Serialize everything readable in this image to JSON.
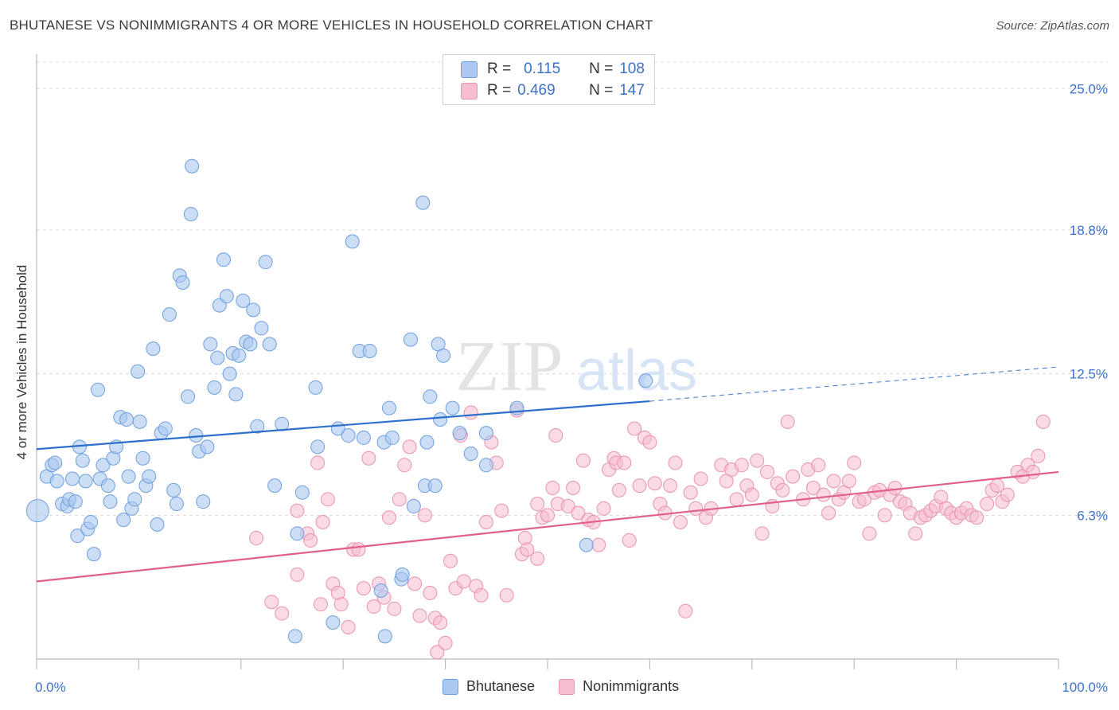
{
  "header": {
    "title": "BHUTANESE VS NONIMMIGRANTS 4 OR MORE VEHICLES IN HOUSEHOLD CORRELATION CHART",
    "source": "Source: ZipAtlas.com"
  },
  "watermark": {
    "zip": "ZIP",
    "atlas": "atlas"
  },
  "stats": [
    {
      "r_label": "R =",
      "r_value": "0.115",
      "n_label": "N =",
      "n_value": "108"
    },
    {
      "r_label": "R =",
      "r_value": "0.469",
      "n_label": "N =",
      "n_value": "147"
    }
  ],
  "legend": [
    "Bhutanese",
    "Nonimmigrants"
  ],
  "colors": {
    "blue_fill": "#aac8f0",
    "blue_stroke": "#6e9fde",
    "blue_line": "#2f6fcc",
    "pink_fill": "#f6bcd0",
    "pink_stroke": "#e993b0",
    "pink_line": "#e0608a",
    "tick_label": "#3c72c8",
    "grid": "#d9d9d9"
  },
  "chart_data": {
    "type": "scatter",
    "title": "BHUTANESE VS NONIMMIGRANTS 4 OR MORE VEHICLES IN HOUSEHOLD CORRELATION CHART",
    "xlabel": "",
    "ylabel": "4 or more Vehicles in Household",
    "xlim": [
      0,
      100
    ],
    "ylim": [
      0,
      26.3
    ],
    "x_tick_labels": [
      "0.0%",
      "100.0%"
    ],
    "y_ticks": [
      6.3,
      12.5,
      18.8,
      25.0
    ],
    "y_tick_labels": [
      "6.3%",
      "12.5%",
      "18.8%",
      "25.0%"
    ],
    "grid": true,
    "legend_position": "bottom-center",
    "series": [
      {
        "name": "Bhutanese",
        "color": "#6e9fde",
        "trend": {
          "x": [
            0,
            60
          ],
          "y": [
            9.2,
            11.3
          ],
          "dashed_to": [
            100,
            12.8
          ]
        },
        "points": [
          [
            0.1,
            6.5
          ],
          [
            1,
            8
          ],
          [
            2,
            7.8
          ],
          [
            1.5,
            8.5
          ],
          [
            1.8,
            8.6
          ],
          [
            2.5,
            6.8
          ],
          [
            3,
            6.7
          ],
          [
            3.2,
            7
          ],
          [
            3.5,
            7.9
          ],
          [
            3.8,
            6.9
          ],
          [
            4,
            5.4
          ],
          [
            4.2,
            9.3
          ],
          [
            4.5,
            8.7
          ],
          [
            4.8,
            7.8
          ],
          [
            5,
            5.7
          ],
          [
            5.3,
            6
          ],
          [
            5.6,
            4.6
          ],
          [
            6,
            11.8
          ],
          [
            6.2,
            7.9
          ],
          [
            6.5,
            8.5
          ],
          [
            7,
            7.6
          ],
          [
            7.2,
            6.9
          ],
          [
            7.5,
            8.8
          ],
          [
            7.8,
            9.3
          ],
          [
            8.2,
            10.6
          ],
          [
            8.5,
            6.1
          ],
          [
            8.8,
            10.5
          ],
          [
            9,
            8
          ],
          [
            9.3,
            6.6
          ],
          [
            9.6,
            7
          ],
          [
            9.9,
            12.6
          ],
          [
            10.1,
            10.4
          ],
          [
            10.4,
            8.8
          ],
          [
            10.7,
            7.6
          ],
          [
            11,
            8
          ],
          [
            11.4,
            13.6
          ],
          [
            11.8,
            5.9
          ],
          [
            12.2,
            9.9
          ],
          [
            12.6,
            10.1
          ],
          [
            13,
            15.1
          ],
          [
            13.4,
            7.4
          ],
          [
            13.7,
            6.8
          ],
          [
            14,
            16.8
          ],
          [
            14.3,
            16.5
          ],
          [
            14.8,
            11.5
          ],
          [
            15.2,
            21.6
          ],
          [
            15.1,
            19.5
          ],
          [
            15.6,
            9.8
          ],
          [
            15.9,
            9.1
          ],
          [
            16.3,
            6.9
          ],
          [
            16.7,
            9.3
          ],
          [
            17,
            13.8
          ],
          [
            17.4,
            11.9
          ],
          [
            17.7,
            13.2
          ],
          [
            17.9,
            15.5
          ],
          [
            18.3,
            17.5
          ],
          [
            18.6,
            15.9
          ],
          [
            18.9,
            12.5
          ],
          [
            19.2,
            13.4
          ],
          [
            19.5,
            11.6
          ],
          [
            19.8,
            13.3
          ],
          [
            20.2,
            15.7
          ],
          [
            20.5,
            13.9
          ],
          [
            20.9,
            13.8
          ],
          [
            21.2,
            15.3
          ],
          [
            21.6,
            10.2
          ],
          [
            22,
            14.5
          ],
          [
            22.4,
            17.4
          ],
          [
            22.8,
            13.8
          ],
          [
            23.3,
            7.6
          ],
          [
            24,
            10.3
          ],
          [
            25.5,
            5.5
          ],
          [
            25.3,
            1
          ],
          [
            26,
            7.3
          ],
          [
            27.3,
            11.9
          ],
          [
            27.5,
            9.3
          ],
          [
            29,
            1.6
          ],
          [
            29.5,
            10.1
          ],
          [
            30.5,
            9.8
          ],
          [
            30.9,
            18.3
          ],
          [
            31.6,
            13.5
          ],
          [
            32,
            9.7
          ],
          [
            32.6,
            13.5
          ],
          [
            33.7,
            3.0
          ],
          [
            34,
            9.5
          ],
          [
            34.1,
            1.0
          ],
          [
            34.5,
            11
          ],
          [
            34.8,
            9.7
          ],
          [
            35.7,
            3.5
          ],
          [
            35.8,
            3.7
          ],
          [
            36.6,
            14
          ],
          [
            36.9,
            6.7
          ],
          [
            37.8,
            20
          ],
          [
            38.2,
            9.5
          ],
          [
            38,
            7.6
          ],
          [
            38.5,
            11.5
          ],
          [
            39,
            7.6
          ],
          [
            39.3,
            13.8
          ],
          [
            39.5,
            10.5
          ],
          [
            39.8,
            13.3
          ],
          [
            40.7,
            11
          ],
          [
            41.4,
            9.9
          ],
          [
            42.5,
            9
          ],
          [
            44,
            8.5
          ],
          [
            44,
            9.9
          ],
          [
            47,
            11
          ],
          [
            53.8,
            5
          ],
          [
            59.6,
            12.2
          ]
        ]
      },
      {
        "name": "Nonimmigrants",
        "color": "#e993b0",
        "trend": {
          "x": [
            0,
            100
          ],
          "y": [
            3.4,
            8.2
          ]
        },
        "points": [
          [
            21.5,
            5.3
          ],
          [
            23,
            2.5
          ],
          [
            24,
            2
          ],
          [
            25.5,
            6.5
          ],
          [
            25.5,
            3.7
          ],
          [
            26.5,
            5.5
          ],
          [
            26.8,
            5.2
          ],
          [
            27.5,
            8.6
          ],
          [
            27.8,
            2.4
          ],
          [
            28,
            6
          ],
          [
            28.5,
            7
          ],
          [
            29,
            3.3
          ],
          [
            29.5,
            2.9
          ],
          [
            29.8,
            2.4
          ],
          [
            30.5,
            1.4
          ],
          [
            31,
            4.8
          ],
          [
            31.5,
            4.8
          ],
          [
            32,
            3.1
          ],
          [
            32.5,
            8.8
          ],
          [
            33,
            2.3
          ],
          [
            33.5,
            3.3
          ],
          [
            34,
            2.7
          ],
          [
            34.5,
            6.2
          ],
          [
            35,
            2.2
          ],
          [
            35.5,
            7
          ],
          [
            36,
            8.5
          ],
          [
            36.5,
            9.3
          ],
          [
            37,
            3.3
          ],
          [
            37.5,
            1.9
          ],
          [
            38,
            6.3
          ],
          [
            38.5,
            2.9
          ],
          [
            39,
            1.8
          ],
          [
            39.2,
            0.3
          ],
          [
            39.5,
            1.6
          ],
          [
            40,
            0.7
          ],
          [
            40.5,
            4.3
          ],
          [
            41,
            3.1
          ],
          [
            41.5,
            9.8
          ],
          [
            41.8,
            3.4
          ],
          [
            42.5,
            10.8
          ],
          [
            43,
            3.2
          ],
          [
            43.5,
            2.8
          ],
          [
            44,
            6
          ],
          [
            44.5,
            9.5
          ],
          [
            45,
            8.6
          ],
          [
            45.5,
            6.5
          ],
          [
            46,
            2.8
          ],
          [
            47,
            10.9
          ],
          [
            47.5,
            4.6
          ],
          [
            47.8,
            5.3
          ],
          [
            48,
            4.8
          ],
          [
            49,
            4.4
          ],
          [
            49,
            6.8
          ],
          [
            49.5,
            6.2
          ],
          [
            50,
            6.3
          ],
          [
            50.5,
            7.5
          ],
          [
            50.8,
            9.8
          ],
          [
            51,
            6.8
          ],
          [
            52,
            6.7
          ],
          [
            52.5,
            7.5
          ],
          [
            53,
            6.4
          ],
          [
            53.5,
            8.7
          ],
          [
            54,
            6.1
          ],
          [
            54.5,
            6
          ],
          [
            55,
            5
          ],
          [
            55.5,
            6.6
          ],
          [
            56,
            8.3
          ],
          [
            56.5,
            8.8
          ],
          [
            56.7,
            8.6
          ],
          [
            57,
            7.4
          ],
          [
            57.5,
            8.6
          ],
          [
            58,
            5.2
          ],
          [
            58.5,
            10.1
          ],
          [
            59,
            7.6
          ],
          [
            59.5,
            9.7
          ],
          [
            60,
            9.5
          ],
          [
            60.5,
            7.7
          ],
          [
            61,
            6.8
          ],
          [
            61.5,
            6.4
          ],
          [
            62,
            7.6
          ],
          [
            62.5,
            8.6
          ],
          [
            63,
            6
          ],
          [
            63.5,
            2.1
          ],
          [
            64,
            7.3
          ],
          [
            64.5,
            6.6
          ],
          [
            65,
            7.9
          ],
          [
            65.5,
            6.2
          ],
          [
            66,
            6.6
          ],
          [
            67,
            8.5
          ],
          [
            67.5,
            7.8
          ],
          [
            68,
            8.3
          ],
          [
            68.5,
            7
          ],
          [
            69,
            8.5
          ],
          [
            69.5,
            7.6
          ],
          [
            70,
            7.2
          ],
          [
            70.5,
            8.7
          ],
          [
            71,
            5.5
          ],
          [
            71.5,
            8.2
          ],
          [
            72,
            6.7
          ],
          [
            72.5,
            7.7
          ],
          [
            73,
            7.4
          ],
          [
            73.5,
            10.4
          ],
          [
            74,
            8
          ],
          [
            75,
            7
          ],
          [
            75.5,
            8.3
          ],
          [
            76,
            7.5
          ],
          [
            76.5,
            8.5
          ],
          [
            77,
            7.2
          ],
          [
            77.5,
            6.4
          ],
          [
            78,
            7.8
          ],
          [
            78.5,
            7
          ],
          [
            79,
            7.3
          ],
          [
            79.5,
            7.8
          ],
          [
            80,
            8.6
          ],
          [
            80.5,
            6.9
          ],
          [
            81,
            7
          ],
          [
            81.5,
            5.5
          ],
          [
            82,
            7.3
          ],
          [
            82.5,
            7.4
          ],
          [
            83,
            6.3
          ],
          [
            83.5,
            7.2
          ],
          [
            84,
            7.5
          ],
          [
            84.5,
            6.9
          ],
          [
            85,
            6.8
          ],
          [
            85.5,
            6.4
          ],
          [
            86,
            5.5
          ],
          [
            86.5,
            6.2
          ],
          [
            87,
            6.3
          ],
          [
            87.5,
            6.5
          ],
          [
            88,
            6.7
          ],
          [
            88.5,
            7.1
          ],
          [
            89,
            6.6
          ],
          [
            89.5,
            6.4
          ],
          [
            90,
            6.2
          ],
          [
            90.5,
            6.4
          ],
          [
            91,
            6.6
          ],
          [
            91.5,
            6.3
          ],
          [
            92,
            6.2
          ],
          [
            93,
            6.8
          ],
          [
            93.5,
            7.4
          ],
          [
            94,
            7.6
          ],
          [
            94.5,
            6.9
          ],
          [
            95,
            7.2
          ],
          [
            96,
            8.2
          ],
          [
            96.5,
            8.0
          ],
          [
            97,
            8.5
          ],
          [
            97.5,
            8.2
          ],
          [
            98,
            8.9
          ],
          [
            98.5,
            10.4
          ]
        ]
      }
    ]
  }
}
